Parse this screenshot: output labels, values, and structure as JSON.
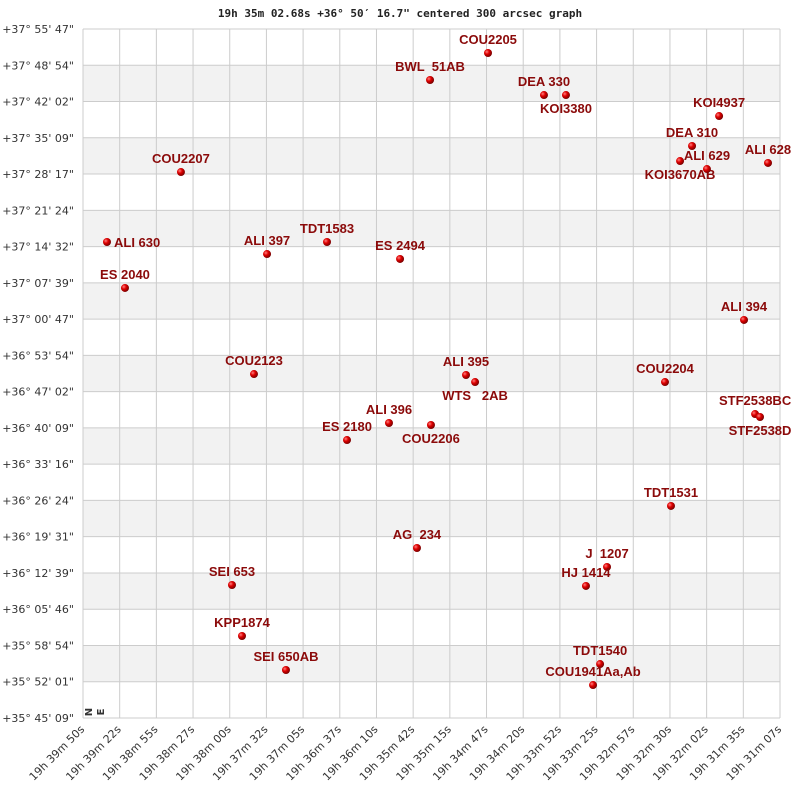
{
  "chart_data": {
    "type": "scatter",
    "title": "19h 35m 02.68s +36° 50′ 16.7\" centered 300 arcsec graph",
    "xlim": [
      "19h 39m 50s",
      "19h 31m 07s"
    ],
    "ylim": [
      "+35° 45' 09\"",
      "+37° 55' 47\""
    ],
    "x_reversed": true,
    "grid": true,
    "alternating_bands": true,
    "compass": {
      "north": "N",
      "east": "E"
    },
    "x_ticks": [
      "19h 39m 50s",
      "19h 39m 22s",
      "19h 38m 55s",
      "19h 38m 27s",
      "19h 38m 00s",
      "19h 37m 32s",
      "19h 37m 05s",
      "19h 36m 37s",
      "19h 36m 10s",
      "19h 35m 42s",
      "19h 35m 15s",
      "19h 34m 47s",
      "19h 34m 20s",
      "19h 33m 52s",
      "19h 33m 25s",
      "19h 32m 57s",
      "19h 32m 30s",
      "19h 32m 02s",
      "19h 31m 35s",
      "19h 31m 07s"
    ],
    "y_ticks": [
      "+37° 55' 47\"",
      "+37° 48' 54\"",
      "+37° 42' 02\"",
      "+37° 35' 09\"",
      "+37° 28' 17\"",
      "+37° 21' 24\"",
      "+37° 14' 32\"",
      "+37° 07' 39\"",
      "+37° 00' 47\"",
      "+36° 53' 54\"",
      "+36° 47' 02\"",
      "+36° 40' 09\"",
      "+36° 33' 16\"",
      "+36° 26' 24\"",
      "+36° 19' 31\"",
      "+36° 12' 39\"",
      "+36° 05' 46\"",
      "+35° 58' 54\"",
      "+35° 52' 01\"",
      "+35° 45' 09\""
    ],
    "colors": {
      "label": "#8b0a0a",
      "point": "#e00000",
      "band": "#f2f2f2",
      "grid": "#cccccc"
    },
    "points": [
      {
        "name": "COU2205",
        "ra": "19h 34m 46.1s",
        "dec": "+37° 51' 14\""
      },
      {
        "name": "BWL  51AB",
        "ra": "19h 35m 29.6s",
        "dec": "+37° 46' 07\""
      },
      {
        "name": "DEA 330",
        "ra": "19h 34m 04.1s",
        "dec": "+37° 43' 16\""
      },
      {
        "name": "KOI3380",
        "ra": "19h 33m 47.6s",
        "dec": "+37° 43' 16\""
      },
      {
        "name": "KOI4937",
        "ra": "19h 31m 52.7s",
        "dec": "+37° 39' 17\""
      },
      {
        "name": "DEA 310",
        "ra": "19h 32m 13.0s",
        "dec": "+37° 33' 36\""
      },
      {
        "name": "KOI3670AB",
        "ra": "19h 32m 22.0s",
        "dec": "+37° 30' 45\""
      },
      {
        "name": "ALI 629",
        "ra": "19h 32m 01.8s",
        "dec": "+37° 29' 14\""
      },
      {
        "name": "ALI 628",
        "ra": "19h 31m 16.0s",
        "dec": "+37° 30' 23\""
      },
      {
        "name": "COU2207",
        "ra": "19h 38m 36.5s",
        "dec": "+37° 28' 40\""
      },
      {
        "name": "ALI 630",
        "ra": "19h 39m 32.0s",
        "dec": "+37° 15' 24\""
      },
      {
        "name": "ALI 397",
        "ra": "19h 37m 31.9s",
        "dec": "+37° 13' 07\""
      },
      {
        "name": "TDT1583",
        "ra": "19h 36m 46.9s",
        "dec": "+37° 15' 24\""
      },
      {
        "name": "ES 2494",
        "ra": "19h 35m 52.1s",
        "dec": "+37° 12' 11\""
      },
      {
        "name": "ES 2040",
        "ra": "19h 39m 18.5s",
        "dec": "+37° 06' 41\""
      },
      {
        "name": "ALI 394",
        "ra": "19h 31m 34.0s",
        "dec": "+37° 00' 37\""
      },
      {
        "name": "COU2123",
        "ra": "19h 37m 41.7s",
        "dec": "+36° 50' 22\""
      },
      {
        "name": "ALI 395",
        "ra": "19h 35m 02.6s",
        "dec": "+36° 50' 11\""
      },
      {
        "name": "WTS   2AB",
        "ra": "19h 34m 55.8s",
        "dec": "+36° 48' 51\""
      },
      {
        "name": "COU2204",
        "ra": "19h 32m 33.3s",
        "dec": "+36° 48' 51\""
      },
      {
        "name": "STF2538BC",
        "ra": "19h 31m 25.7s",
        "dec": "+36° 42' 47\""
      },
      {
        "name": "STF2538D",
        "ra": "19h 31m 22.0s",
        "dec": "+36° 42' 13\""
      },
      {
        "name": "ALI 396",
        "ra": "19h 36m 00.4s",
        "dec": "+36° 41' 05\""
      },
      {
        "name": "COU2206",
        "ra": "19h 35m 28.9s",
        "dec": "+36° 40' 42\""
      },
      {
        "name": "ES 2180",
        "ra": "19h 36m 31.9s",
        "dec": "+36° 37' 51\""
      },
      {
        "name": "TDT1531",
        "ra": "19h 32m 28.8s",
        "dec": "+36° 25' 21\""
      },
      {
        "name": "AG  234",
        "ra": "19h 35m 39.4s",
        "dec": "+36° 17' 23\""
      },
      {
        "name": "J  1207",
        "ra": "19h 33m 16.8s",
        "dec": "+36° 13' 47\""
      },
      {
        "name": "HJ 1414",
        "ra": "19h 33m 32.6s",
        "dec": "+36° 10' 11\""
      },
      {
        "name": "SEI 653",
        "ra": "19h 37m 58.2s",
        "dec": "+36° 10' 22\""
      },
      {
        "name": "KPP1874",
        "ra": "19h 37m 50.7s",
        "dec": "+36° 00' 42\""
      },
      {
        "name": "SEI 650AB",
        "ra": "19h 37m 17.7s",
        "dec": "+35° 54' 15\""
      },
      {
        "name": "TDT1540",
        "ra": "19h 33m 22.0s",
        "dec": "+35° 55' 23\""
      },
      {
        "name": "COU1941Aa,Ab",
        "ra": "19h 33m 27.3s",
        "dec": "+35° 51' 24\""
      }
    ]
  }
}
